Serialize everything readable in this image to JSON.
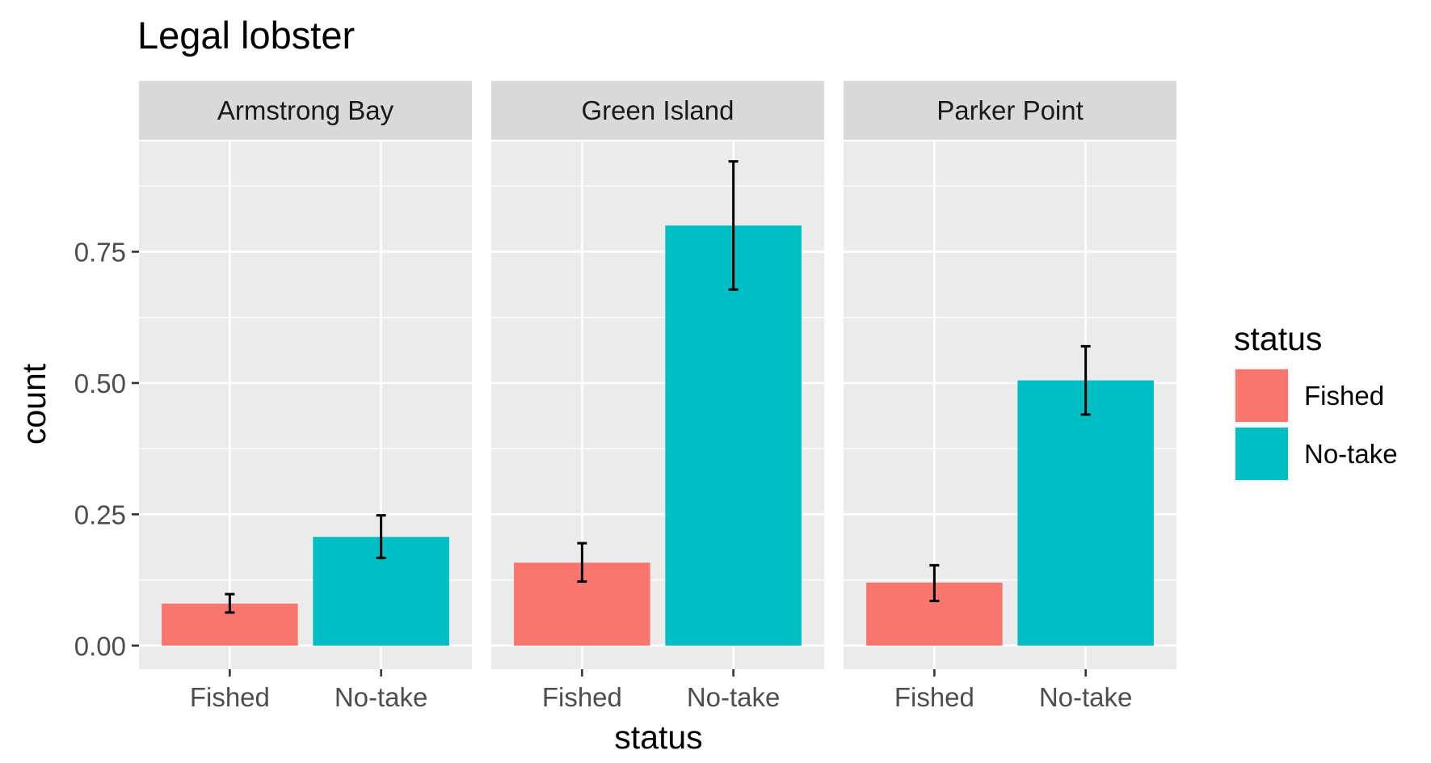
{
  "chart_data": {
    "type": "bar",
    "title": "Legal lobster",
    "xlabel": "status",
    "ylabel": "count",
    "ylim": [
      -0.045,
      0.96
    ],
    "yticks": [
      0,
      0.25,
      0.5,
      0.75
    ],
    "ytick_labels": [
      "0.00",
      "0.25",
      "0.50",
      "0.75"
    ],
    "categories": [
      "Fished",
      "No-take"
    ],
    "colors": {
      "Fished": "#F8766D",
      "No-take": "#00BFC4"
    },
    "panel_background": "#EBEBEB",
    "strip_background": "#D9D9D9",
    "grid": true,
    "legend": {
      "title": "status",
      "position": "right",
      "entries": [
        "Fished",
        "No-take"
      ]
    },
    "facets": [
      {
        "name": "Armstrong Bay",
        "values": [
          0.08,
          0.207
        ],
        "errors": [
          [
            0.063,
            0.098
          ],
          [
            0.167,
            0.248
          ]
        ]
      },
      {
        "name": "Green Island",
        "values": [
          0.158,
          0.8
        ],
        "errors": [
          [
            0.122,
            0.195
          ],
          [
            0.678,
            0.922
          ]
        ]
      },
      {
        "name": "Parker Point",
        "values": [
          0.12,
          0.505
        ],
        "errors": [
          [
            0.085,
            0.153
          ],
          [
            0.44,
            0.57
          ]
        ]
      }
    ]
  }
}
